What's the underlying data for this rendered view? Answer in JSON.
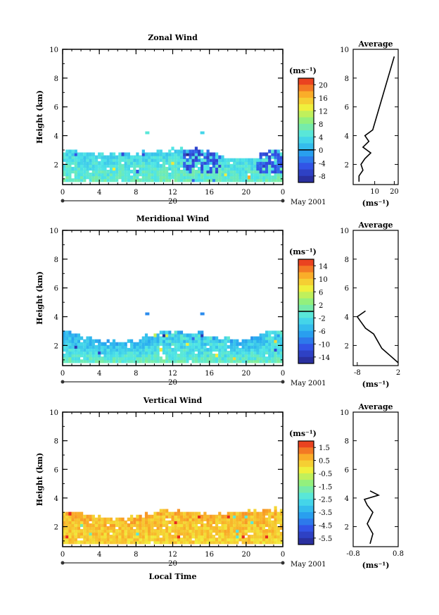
{
  "figure": {
    "xlabel": "Local Time",
    "day_label": "20",
    "month_label": "May 2001",
    "ylabel": "Height (km)",
    "unit_label": "(ms⁻¹)",
    "average_title": "Average"
  },
  "chart_data": [
    {
      "type": "heatmap",
      "title": "Zonal Wind",
      "xlabel": "Local Time",
      "ylabel": "Height (km)",
      "x_ticks": [
        "0",
        "4",
        "8",
        "12",
        "16",
        "20",
        "0"
      ],
      "x_range": [
        0,
        24
      ],
      "y_ticks": [
        "2",
        "4",
        "6",
        "8",
        "10"
      ],
      "y_range": [
        0.6,
        10
      ],
      "colorbar": {
        "label": "(ms⁻¹)",
        "ticks": [
          "20",
          "16",
          "12",
          "8",
          "4",
          "0",
          "-4",
          "-8"
        ],
        "range": [
          -10,
          22
        ],
        "zero_marker": 0
      },
      "field": {
        "base_height": 0.8,
        "top_height": [
          2.9,
          2.8,
          2.6,
          2.5,
          2.6,
          2.7,
          2.8,
          2.9,
          3.0,
          3.0,
          2.7,
          2.4,
          2.3,
          2.4,
          2.9
        ],
        "low_value": 6,
        "high_value": 3,
        "negative_zone_hours": [
          13,
          17
        ],
        "negative_zone_hours_2": [
          21,
          24
        ],
        "negative_value": -5,
        "isolated": [
          {
            "hour": 9,
            "height": 4.1,
            "value": 5
          },
          {
            "hour": 15,
            "height": 4.1,
            "value": 3
          }
        ]
      },
      "average_profile": {
        "xlim": [
          -1,
          22
        ],
        "x_ticks": [
          "10",
          "20"
        ],
        "heights": [
          0.8,
          1.2,
          1.6,
          2.0,
          2.4,
          2.8,
          3.2,
          3.6,
          4.0,
          4.4,
          9.5
        ],
        "values": [
          2,
          2,
          4,
          3,
          5,
          8,
          4,
          7,
          5,
          9,
          20
        ]
      }
    },
    {
      "type": "heatmap",
      "title": "Meridional Wind",
      "xlabel": "Local Time",
      "ylabel": "Height (km)",
      "x_ticks": [
        "0",
        "4",
        "8",
        "12",
        "16",
        "20",
        "0"
      ],
      "x_range": [
        0,
        24
      ],
      "y_ticks": [
        "2",
        "4",
        "6",
        "8",
        "10"
      ],
      "y_range": [
        0.6,
        10
      ],
      "colorbar": {
        "label": "(ms⁻¹)",
        "ticks": [
          "14",
          "10",
          "6",
          "2",
          "-2",
          "-6",
          "-10",
          "-14"
        ],
        "range": [
          -16,
          16
        ],
        "zero_marker": 0
      },
      "field": {
        "base_height": 0.8,
        "top_height": [
          3.0,
          2.6,
          2.3,
          2.2,
          2.1,
          2.3,
          2.6,
          2.9,
          2.9,
          2.8,
          2.6,
          2.4,
          2.3,
          2.5,
          2.9
        ],
        "low_value": 0,
        "high_value": -6,
        "negative_zone_hours": [
          10,
          18
        ],
        "negative_zone_hours_2": [
          22,
          24
        ],
        "negative_value": -2,
        "isolated": [
          {
            "hour": 9,
            "height": 4.1,
            "value": -8
          },
          {
            "hour": 15,
            "height": 4.1,
            "value": -8
          }
        ]
      },
      "average_profile": {
        "xlim": [
          -9,
          2
        ],
        "x_ticks": [
          "-8",
          "2"
        ],
        "heights": [
          0.8,
          1.3,
          1.8,
          2.3,
          2.8,
          3.2,
          3.6,
          4.0,
          4.4
        ],
        "values": [
          2,
          0,
          -2,
          -3,
          -4,
          -6,
          -7,
          -8,
          -6
        ]
      }
    },
    {
      "type": "heatmap",
      "title": "Vertical Wind",
      "xlabel": "Local Time",
      "ylabel": "Height (km)",
      "x_ticks": [
        "0",
        "4",
        "8",
        "12",
        "16",
        "20",
        "0"
      ],
      "x_range": [
        0,
        24
      ],
      "y_ticks": [
        "2",
        "4",
        "6",
        "8",
        "10"
      ],
      "y_range": [
        0.6,
        10
      ],
      "colorbar": {
        "label": "(ms⁻¹)",
        "ticks": [
          "1.5",
          "0.5",
          "-0.5",
          "-1.5",
          "-2.5",
          "-3.5",
          "-4.5",
          "-5.5"
        ],
        "range": [
          -6,
          2
        ],
        "zero_marker": null
      },
      "field": {
        "base_height": 0.8,
        "top_height": [
          3.0,
          2.8,
          2.6,
          2.5,
          2.5,
          2.6,
          2.8,
          3.0,
          3.0,
          2.9,
          2.8,
          2.8,
          2.9,
          3.0,
          3.1
        ],
        "low_value": 0.2,
        "high_value": 0.6,
        "negative_zone_hours": null,
        "negative_zone_hours_2": null,
        "negative_value": 0,
        "isolated": []
      },
      "average_profile": {
        "xlim": [
          -0.8,
          0.8
        ],
        "x_ticks": [
          "-0.8",
          "0.8"
        ],
        "heights": [
          0.8,
          1.5,
          2.2,
          3.0,
          3.5,
          3.9,
          4.2,
          4.5
        ],
        "values": [
          -0.2,
          -0.1,
          -0.3,
          -0.1,
          -0.3,
          -0.4,
          0.1,
          -0.2
        ]
      }
    }
  ]
}
